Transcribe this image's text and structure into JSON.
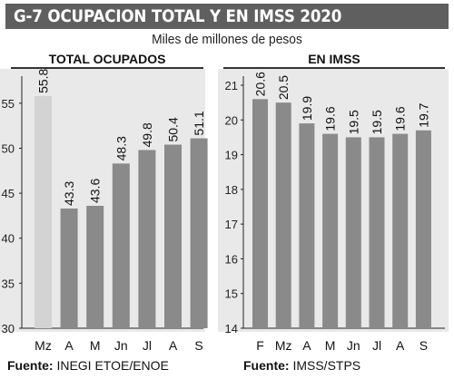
{
  "header": {
    "title": "G-7 OCUPACION TOTAL Y EN IMSS 2020",
    "subtitle": "Miles de millones de pesos"
  },
  "colors": {
    "bar": "#8a8a8a",
    "bar_highlight": "#d3d3d3",
    "panel_bg": "#e9e9e9",
    "title_bg": "#5f5f5f"
  },
  "chart_data": [
    {
      "type": "bar",
      "title": "TOTAL OCUPADOS",
      "categories": [
        "Mz",
        "A",
        "M",
        "Jn",
        "Jl",
        "A",
        "S"
      ],
      "values": [
        55.8,
        43.3,
        43.6,
        48.3,
        49.8,
        50.4,
        51.1
      ],
      "value_labels": [
        "55.8",
        "43.3",
        "43.6",
        "48.3",
        "49.8",
        "50.4",
        "51.1"
      ],
      "highlight_index": 0,
      "ylim": [
        30,
        57
      ],
      "yticks": [
        30,
        35,
        40,
        45,
        50,
        55
      ],
      "grid": false
    },
    {
      "type": "bar",
      "title": "EN IMSS",
      "categories": [
        "F",
        "Mz",
        "A",
        "M",
        "Jn",
        "Jl",
        "A",
        "S"
      ],
      "values": [
        20.6,
        20.5,
        19.9,
        19.6,
        19.5,
        19.5,
        19.6,
        19.7
      ],
      "value_labels": [
        "20.6",
        "20.5",
        "19.9",
        "19.6",
        "19.5",
        "19.5",
        "19.6",
        "19.7"
      ],
      "ylim": [
        14,
        21
      ],
      "yticks": [
        14,
        15,
        16,
        17,
        18,
        19,
        20,
        21
      ],
      "grid": false
    }
  ],
  "footer": {
    "left_label": "Fuente:",
    "left_text": "INEGI  ETOE/ENOE",
    "right_label": "Fuente:",
    "right_text": "IMSS/STPS"
  }
}
